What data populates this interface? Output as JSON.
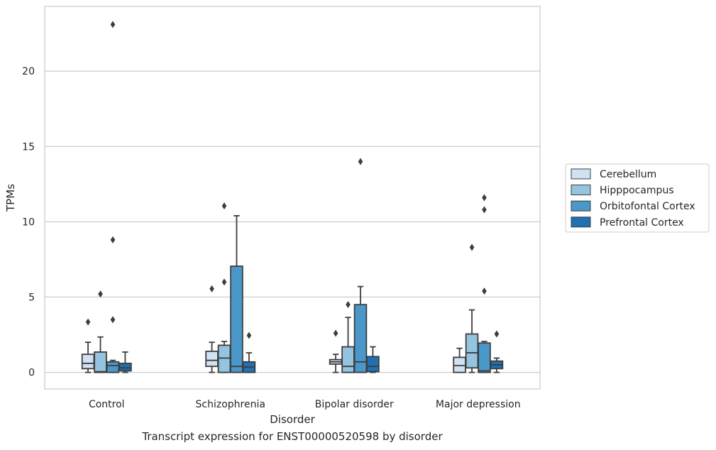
{
  "chart_data": {
    "type": "box",
    "caption": "Transcript expression for ENST00000520598 by disorder",
    "xlabel": "Disorder",
    "ylabel": "TPMs",
    "ylim": [
      -1.1,
      24.3
    ],
    "yticks": [
      0,
      5,
      10,
      15,
      20
    ],
    "grid": true,
    "legend_position": "right",
    "categories": [
      "Control",
      "Schizophrenia",
      "Bipolar disorder",
      "Major depression"
    ],
    "series": [
      {
        "name": "Cerebellum",
        "color": "#d0e1f2",
        "boxes": [
          {
            "whisker_low": 0.0,
            "q1": 0.25,
            "median": 0.6,
            "q3": 1.2,
            "whisker_high": 2.0,
            "outliers": [
              3.35
            ]
          },
          {
            "whisker_low": 0.0,
            "q1": 0.4,
            "median": 0.8,
            "q3": 1.4,
            "whisker_high": 2.0,
            "outliers": [
              5.55
            ]
          },
          {
            "whisker_low": 0.0,
            "q1": 0.55,
            "median": 0.7,
            "q3": 0.85,
            "whisker_high": 1.2,
            "outliers": [
              2.6
            ]
          },
          {
            "whisker_low": 0.0,
            "q1": 0.0,
            "median": 0.45,
            "q3": 1.0,
            "whisker_high": 1.6,
            "outliers": []
          }
        ]
      },
      {
        "name": "Hipppocampus",
        "color": "#94c4df",
        "boxes": [
          {
            "whisker_low": 0.0,
            "q1": 0.0,
            "median": 0.05,
            "q3": 1.35,
            "whisker_high": 2.35,
            "outliers": [
              5.2
            ]
          },
          {
            "whisker_low": 0.0,
            "q1": 0.0,
            "median": 0.95,
            "q3": 1.8,
            "whisker_high": 2.05,
            "outliers": [
              6.0,
              11.05
            ]
          },
          {
            "whisker_low": 0.0,
            "q1": 0.0,
            "median": 0.4,
            "q3": 1.7,
            "whisker_high": 3.65,
            "outliers": [
              4.5
            ]
          },
          {
            "whisker_low": 0.0,
            "q1": 0.3,
            "median": 1.3,
            "q3": 2.55,
            "whisker_high": 4.15,
            "outliers": [
              8.3
            ]
          }
        ]
      },
      {
        "name": "Orbitofontal Cortex",
        "color": "#4a98c9",
        "boxes": [
          {
            "whisker_low": 0.0,
            "q1": 0.0,
            "median": 0.45,
            "q3": 0.7,
            "whisker_high": 0.8,
            "outliers": [
              3.5,
              8.8,
              23.1
            ]
          },
          {
            "whisker_low": 0.0,
            "q1": 0.0,
            "median": 0.4,
            "q3": 7.05,
            "whisker_high": 10.4,
            "outliers": []
          },
          {
            "whisker_low": 0.0,
            "q1": 0.0,
            "median": 0.7,
            "q3": 4.5,
            "whisker_high": 5.7,
            "outliers": [
              14.0
            ]
          },
          {
            "whisker_low": 0.0,
            "q1": 0.0,
            "median": 0.1,
            "q3": 1.95,
            "whisker_high": 2.05,
            "outliers": [
              5.4,
              10.8,
              11.6
            ]
          }
        ]
      },
      {
        "name": "Prefrontal Cortex",
        "color": "#2070b4",
        "boxes": [
          {
            "whisker_low": 0.0,
            "q1": 0.1,
            "median": 0.3,
            "q3": 0.6,
            "whisker_high": 1.35,
            "outliers": []
          },
          {
            "whisker_low": 0.0,
            "q1": 0.0,
            "median": 0.35,
            "q3": 0.7,
            "whisker_high": 1.3,
            "outliers": [
              2.45
            ]
          },
          {
            "whisker_low": 0.0,
            "q1": 0.05,
            "median": 0.4,
            "q3": 1.05,
            "whisker_high": 1.7,
            "outliers": []
          },
          {
            "whisker_low": 0.0,
            "q1": 0.25,
            "median": 0.5,
            "q3": 0.75,
            "whisker_high": 0.95,
            "outliers": [
              2.55
            ]
          }
        ]
      }
    ]
  }
}
